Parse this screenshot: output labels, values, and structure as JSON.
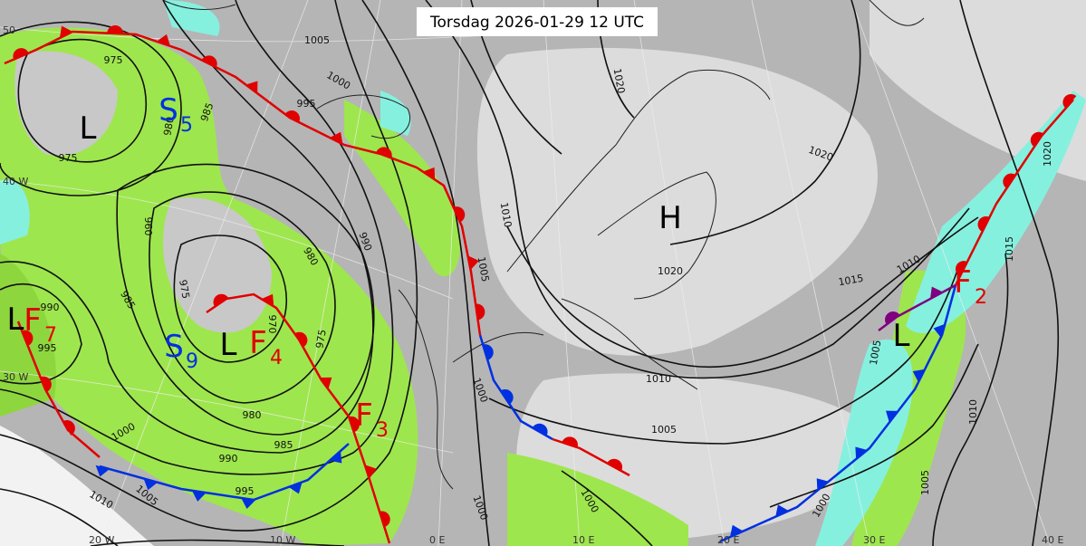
{
  "title": "Torsdag 2026-01-29 12 UTC",
  "isobar_labels": [
    975,
    975,
    985,
    980,
    1005,
    1000,
    995,
    960,
    975,
    985,
    980,
    990,
    990,
    995,
    975,
    970,
    980,
    985,
    990,
    995,
    1000,
    1005,
    1010,
    1010,
    1005,
    1000,
    1000,
    1000,
    1010,
    1005,
    1020,
    1020,
    1015,
    1010,
    1005,
    1020,
    1020,
    1015,
    1010,
    1005,
    1000
  ],
  "systems": [
    "L",
    "L",
    "L",
    "L",
    "H"
  ],
  "fronts": [
    {
      "letter": "F",
      "index": 2
    },
    {
      "letter": "F",
      "index": 3
    },
    {
      "letter": "F",
      "index": 4
    },
    {
      "letter": "F",
      "index": 7
    },
    {
      "letter": "S",
      "index": 5
    },
    {
      "letter": "S",
      "index": 9
    }
  ],
  "graticule_labels": [
    "50",
    "40 W",
    "30 W",
    "20 W",
    "10 W",
    "0 E",
    "10 E",
    "20 E",
    "30 E",
    "40 E"
  ]
}
